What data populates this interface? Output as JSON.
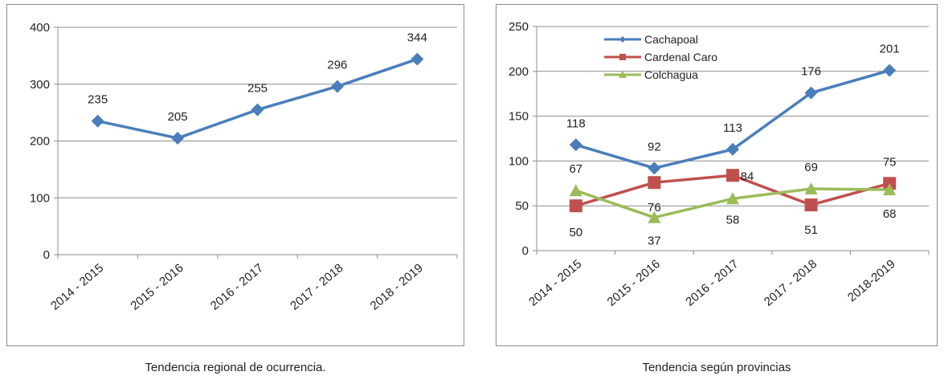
{
  "captions": {
    "left": "Tendencia regional de ocurrencia.",
    "right": "Tendencia según provincias"
  },
  "chart_data": [
    {
      "type": "line",
      "title": "",
      "xlabel": "",
      "ylabel": "",
      "categories": [
        "2014 - 2015",
        "2015 - 2016",
        "2016 - 2017",
        "2017 - 2018",
        "2018 - 2019"
      ],
      "ylim": [
        0,
        400
      ],
      "yticks": [
        0,
        100,
        200,
        300,
        400
      ],
      "grid": true,
      "series": [
        {
          "values": [
            235,
            205,
            255,
            296,
            344
          ],
          "color": "#4a7ebb",
          "marker": "diamond"
        }
      ]
    },
    {
      "type": "line",
      "title": "",
      "xlabel": "",
      "ylabel": "",
      "categories": [
        "2014 - 2015",
        "2015 - 2016",
        "2016 - 2017",
        "2017 - 2018",
        "2018-2019"
      ],
      "ylim": [
        0,
        250
      ],
      "yticks": [
        0,
        50,
        100,
        150,
        200,
        250
      ],
      "grid": true,
      "legend": "top-left",
      "series": [
        {
          "name": "Cachapoal",
          "values": [
            118,
            92,
            113,
            176,
            201
          ],
          "color": "#4a7ebb",
          "marker": "diamond"
        },
        {
          "name": "Cardenal Caro",
          "values": [
            50,
            76,
            84,
            51,
            75
          ],
          "color": "#c0504d",
          "marker": "square"
        },
        {
          "name": "Colchagua",
          "values": [
            67,
            37,
            58,
            69,
            68
          ],
          "color": "#9bbb59",
          "marker": "triangle"
        }
      ]
    }
  ]
}
